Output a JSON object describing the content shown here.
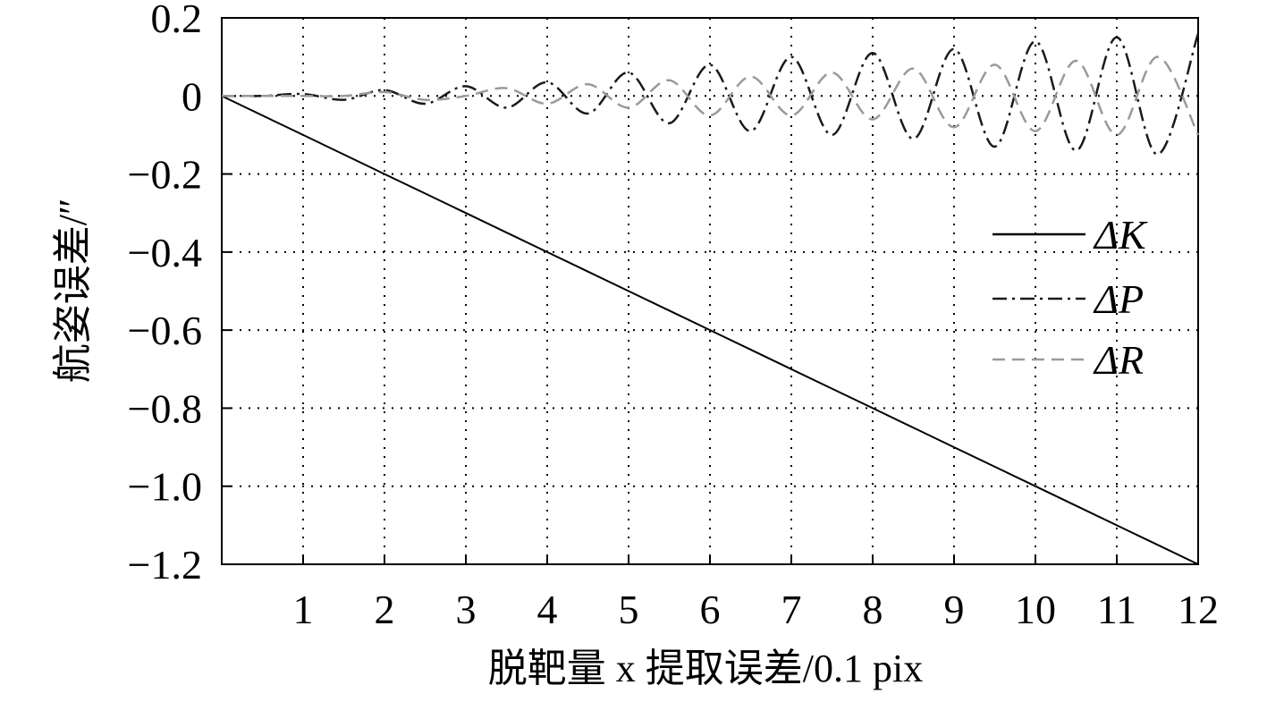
{
  "chart_data": {
    "type": "line",
    "title": "",
    "xlabel": "脱靶量 x 提取误差/0.1 pix",
    "ylabel": "航姿误差/″",
    "xlim": [
      0,
      12
    ],
    "ylim": [
      -1.2,
      0.2
    ],
    "x_ticks": [
      1,
      2,
      3,
      4,
      5,
      6,
      7,
      8,
      9,
      10,
      11,
      12
    ],
    "y_ticks": [
      0.2,
      0,
      -0.2,
      -0.4,
      -0.6,
      -0.8,
      -1.0,
      -1.2
    ],
    "x_tick_labels": [
      "1",
      "2",
      "3",
      "4",
      "5",
      "6",
      "7",
      "8",
      "9",
      "10",
      "11",
      "12"
    ],
    "y_tick_labels": [
      "0.2",
      "0",
      "−0.2",
      "−0.4",
      "−0.6",
      "−0.8",
      "−1.0",
      "−1.2"
    ],
    "grid": true,
    "legend_position": "right",
    "legend": [
      "ΔK",
      "ΔP",
      "ΔR"
    ],
    "series": [
      {
        "name": "ΔK",
        "style": "solid",
        "color": "#000000",
        "x": [
          0,
          1,
          2,
          3,
          4,
          5,
          6,
          7,
          8,
          9,
          10,
          11,
          12
        ],
        "values": [
          0,
          -0.1,
          -0.2,
          -0.3,
          -0.4,
          -0.5,
          -0.6,
          -0.7,
          -0.8,
          -0.9,
          -1.0,
          -1.1,
          -1.2
        ]
      },
      {
        "name": "ΔP",
        "style": "dash-dot",
        "color": "#1a1a1a",
        "x": [
          0,
          0.5,
          1,
          1.5,
          2,
          2.5,
          3,
          3.5,
          4,
          4.5,
          5,
          5.5,
          6,
          6.5,
          7,
          7.5,
          8,
          8.5,
          9,
          9.5,
          10,
          10.5,
          11,
          11.5,
          12
        ],
        "values": [
          0,
          0,
          0.005,
          -0.01,
          0.015,
          -0.02,
          0.025,
          -0.03,
          0.035,
          -0.045,
          0.06,
          -0.07,
          0.08,
          -0.09,
          0.1,
          -0.1,
          0.11,
          -0.11,
          0.12,
          -0.13,
          0.14,
          -0.14,
          0.15,
          -0.15,
          0.16
        ]
      },
      {
        "name": "ΔR",
        "style": "dashed",
        "color": "#9a9a9a",
        "x": [
          0,
          0.5,
          1,
          1.5,
          2,
          2.5,
          3,
          3.5,
          4,
          4.5,
          5,
          5.5,
          6,
          6.5,
          7,
          7.5,
          8,
          8.5,
          9,
          9.5,
          10,
          10.5,
          11,
          11.5,
          12
        ],
        "values": [
          0,
          0,
          0,
          0,
          0.01,
          -0.01,
          0,
          0.02,
          -0.02,
          0.03,
          -0.03,
          0.04,
          -0.05,
          0.05,
          -0.05,
          0.06,
          -0.06,
          0.07,
          -0.08,
          0.08,
          -0.09,
          0.09,
          -0.1,
          0.1,
          -0.1
        ]
      }
    ]
  }
}
